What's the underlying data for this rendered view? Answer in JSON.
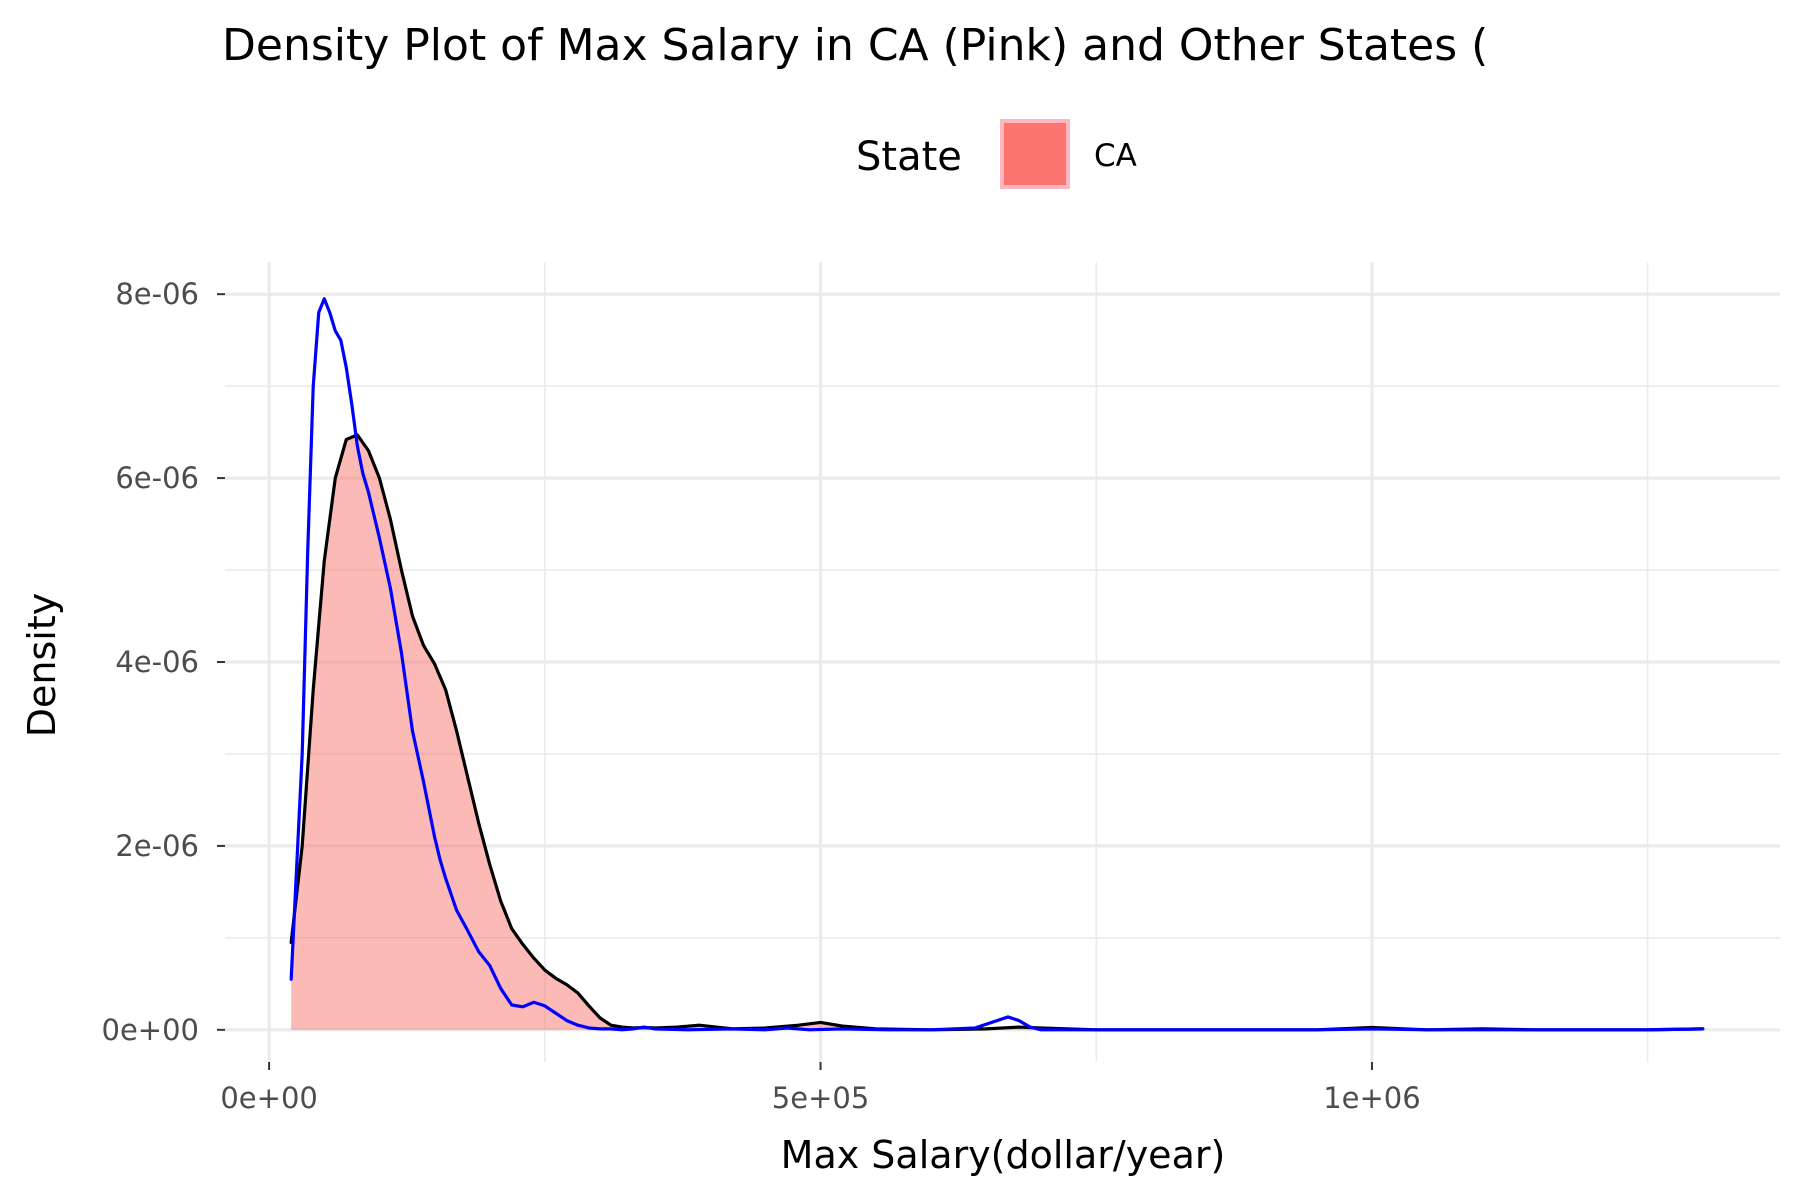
{
  "chart_data": {
    "type": "area",
    "title": "Density Plot of Max Salary in CA (Pink) and Other States (",
    "xlabel": "Max Salary(dollar/year)",
    "ylabel": "Density",
    "xlim": [
      -40000,
      1370000
    ],
    "ylim": [
      -3.5e-07,
      8.35e-06
    ],
    "x_ticks": [
      0,
      500000,
      1000000
    ],
    "x_tick_labels": [
      "0e+00",
      "5e+05",
      "1e+06"
    ],
    "x_minor_ticks": [
      250000,
      750000,
      1250000
    ],
    "y_ticks": [
      0,
      2e-06,
      4e-06,
      6e-06,
      8e-06
    ],
    "y_tick_labels": [
      "0e+00",
      "2e-06",
      "4e-06",
      "6e-06",
      "8e-06"
    ],
    "y_minor_ticks": [
      1e-06,
      3e-06,
      5e-06,
      7e-06
    ],
    "grid": true,
    "legend": {
      "title": "State",
      "position": "top",
      "entries": [
        {
          "label": "CA",
          "color": "#F8766D"
        }
      ]
    },
    "colors": {
      "ca_fill": "#F8766D",
      "ca_line": "#000000",
      "other_line": "#0000FF",
      "grid": "#EBEBEB",
      "tick_text": "#4D4D4D"
    },
    "series": [
      {
        "color": "#000000",
        "filled": true,
        "x": [
          20000,
          30000,
          40000,
          50000,
          60000,
          70000,
          80000,
          90000,
          100000,
          110000,
          120000,
          130000,
          140000,
          150000,
          160000,
          170000,
          180000,
          190000,
          200000,
          210000,
          220000,
          230000,
          240000,
          250000,
          260000,
          270000,
          280000,
          290000,
          300000,
          310000,
          320000,
          330000,
          340000,
          350000,
          370000,
          390000,
          420000,
          450000,
          480000,
          500000,
          520000,
          550000,
          600000,
          650000,
          680000,
          700000,
          750000,
          800000,
          900000,
          950000,
          1000000,
          1050000,
          1100000,
          1150000,
          1200000,
          1250000,
          1300000
        ],
        "y": [
          9.5e-07,
          2e-06,
          3.7e-06,
          5.1e-06,
          6e-06,
          6.42e-06,
          6.47e-06,
          6.3e-06,
          6e-06,
          5.55e-06,
          5e-06,
          4.5e-06,
          4.18e-06,
          3.98e-06,
          3.7e-06,
          3.25e-06,
          2.75e-06,
          2.25e-06,
          1.8e-06,
          1.4e-06,
          1.1e-06,
          9.3e-07,
          7.8e-07,
          6.5e-07,
          5.6e-07,
          4.9e-07,
          4e-07,
          2.6e-07,
          1.3e-07,
          5e-08,
          3e-08,
          2e-08,
          2.5e-08,
          2e-08,
          3e-08,
          5e-08,
          1e-08,
          2e-08,
          5e-08,
          8e-08,
          4e-08,
          1e-08,
          0.0,
          1e-08,
          3e-08,
          2e-08,
          0.0,
          0.0,
          0.0,
          0.0,
          2.5e-08,
          0.0,
          1e-08,
          0.0,
          0.0,
          0.0,
          1e-08
        ]
      },
      {
        "color": "#0000FF",
        "filled": false,
        "x": [
          20000,
          30000,
          35000,
          40000,
          45000,
          50000,
          55000,
          60000,
          65000,
          70000,
          75000,
          80000,
          85000,
          90000,
          95000,
          100000,
          110000,
          120000,
          130000,
          140000,
          145000,
          150000,
          155000,
          160000,
          170000,
          180000,
          190000,
          200000,
          210000,
          220000,
          230000,
          240000,
          250000,
          260000,
          270000,
          280000,
          290000,
          300000,
          310000,
          320000,
          330000,
          340000,
          350000,
          380000,
          420000,
          450000,
          470000,
          490000,
          520000,
          560000,
          600000,
          640000,
          660000,
          670000,
          680000,
          690000,
          700000,
          750000,
          800000,
          900000,
          950000,
          1000000,
          1050000,
          1100000,
          1200000,
          1250000,
          1300000
        ],
        "y": [
          5.5e-07,
          3e-06,
          5.2e-06,
          7e-06,
          7.8e-06,
          7.95e-06,
          7.8e-06,
          7.6e-06,
          7.5e-06,
          7.2e-06,
          6.8e-06,
          6.35e-06,
          6.05e-06,
          5.85e-06,
          5.6e-06,
          5.35e-06,
          4.8e-06,
          4.1e-06,
          3.25e-06,
          2.7e-06,
          2.4e-06,
          2.1e-06,
          1.85e-06,
          1.65e-06,
          1.3e-06,
          1.08e-06,
          8.5e-07,
          7e-07,
          4.5e-07,
          2.7e-07,
          2.5e-07,
          3e-07,
          2.6e-07,
          1.8e-07,
          1e-07,
          5e-08,
          2e-08,
          1e-08,
          1e-08,
          0.0,
          1e-08,
          3e-08,
          1e-08,
          0.0,
          1e-08,
          0.0,
          2e-08,
          0.0,
          1e-08,
          0.0,
          0.0,
          2e-08,
          1e-07,
          1.4e-07,
          1e-07,
          3e-08,
          0.0,
          0.0,
          0.0,
          0.0,
          0.0,
          1e-08,
          0.0,
          0.0,
          0.0,
          0.0,
          1e-08
        ]
      }
    ]
  }
}
